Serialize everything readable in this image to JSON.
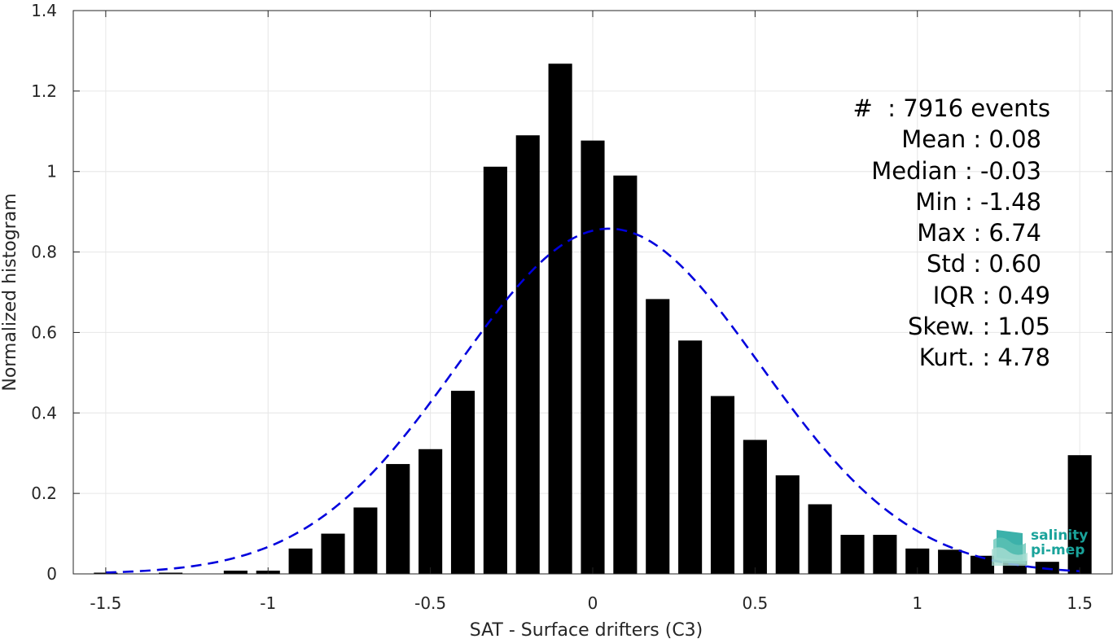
{
  "chart_data": {
    "type": "bar",
    "xlabel": "SAT - Surface drifters (C3)",
    "ylabel": "Normalized histogram",
    "xlim": [
      -1.6,
      1.6
    ],
    "ylim": [
      0,
      1.4
    ],
    "xticks": [
      -1.5,
      -1,
      -0.5,
      0,
      0.5,
      1,
      1.5
    ],
    "xtick_labels": [
      "-1.5",
      "-1",
      "-0.5",
      "0",
      "0.5",
      "1",
      "1.5"
    ],
    "yticks": [
      0,
      0.2,
      0.4,
      0.6,
      0.8,
      1,
      1.2,
      1.4
    ],
    "ytick_labels": [
      "0",
      "0.2",
      "0.4",
      "0.6",
      "0.8",
      "1",
      "1.2",
      "1.4"
    ],
    "grid": true,
    "bin_width": 0.1,
    "bar_color": "#000000",
    "bins": [
      {
        "x": -1.5,
        "y": 0.003
      },
      {
        "x": -1.4,
        "y": 0.0
      },
      {
        "x": -1.3,
        "y": 0.003
      },
      {
        "x": -1.2,
        "y": 0.001
      },
      {
        "x": -1.1,
        "y": 0.008
      },
      {
        "x": -1.0,
        "y": 0.008
      },
      {
        "x": -0.9,
        "y": 0.063
      },
      {
        "x": -0.8,
        "y": 0.1
      },
      {
        "x": -0.7,
        "y": 0.165
      },
      {
        "x": -0.6,
        "y": 0.273
      },
      {
        "x": -0.5,
        "y": 0.31
      },
      {
        "x": -0.4,
        "y": 0.455
      },
      {
        "x": -0.3,
        "y": 1.012
      },
      {
        "x": -0.2,
        "y": 1.09
      },
      {
        "x": -0.1,
        "y": 1.268
      },
      {
        "x": 0.0,
        "y": 1.077
      },
      {
        "x": 0.1,
        "y": 0.99
      },
      {
        "x": 0.2,
        "y": 0.683
      },
      {
        "x": 0.3,
        "y": 0.58
      },
      {
        "x": 0.4,
        "y": 0.442
      },
      {
        "x": 0.5,
        "y": 0.333
      },
      {
        "x": 0.6,
        "y": 0.245
      },
      {
        "x": 0.7,
        "y": 0.173
      },
      {
        "x": 0.8,
        "y": 0.097
      },
      {
        "x": 0.9,
        "y": 0.097
      },
      {
        "x": 1.0,
        "y": 0.063
      },
      {
        "x": 1.1,
        "y": 0.06
      },
      {
        "x": 1.2,
        "y": 0.045
      },
      {
        "x": 1.3,
        "y": 0.032
      },
      {
        "x": 1.4,
        "y": 0.03
      },
      {
        "x": 1.5,
        "y": 0.295
      }
    ],
    "fit_curve": {
      "type": "gaussian",
      "style": "dashed",
      "color": "#0000dd",
      "mean": 0.05,
      "std": 0.465,
      "peak": 0.858,
      "x_range": [
        -1.5,
        1.5
      ]
    }
  },
  "stats": [
    "#  : 7916 events",
    "Mean : 0.08",
    "Median : -0.03",
    "Min : -1.48",
    "Max : 6.74",
    "Std : 0.60",
    "IQR : 0.49",
    "Skew. : 1.05",
    "Kurt. : 4.78"
  ],
  "logo": {
    "line1": "salinity",
    "line2": "pi-mep",
    "color": "#1aa39b"
  }
}
